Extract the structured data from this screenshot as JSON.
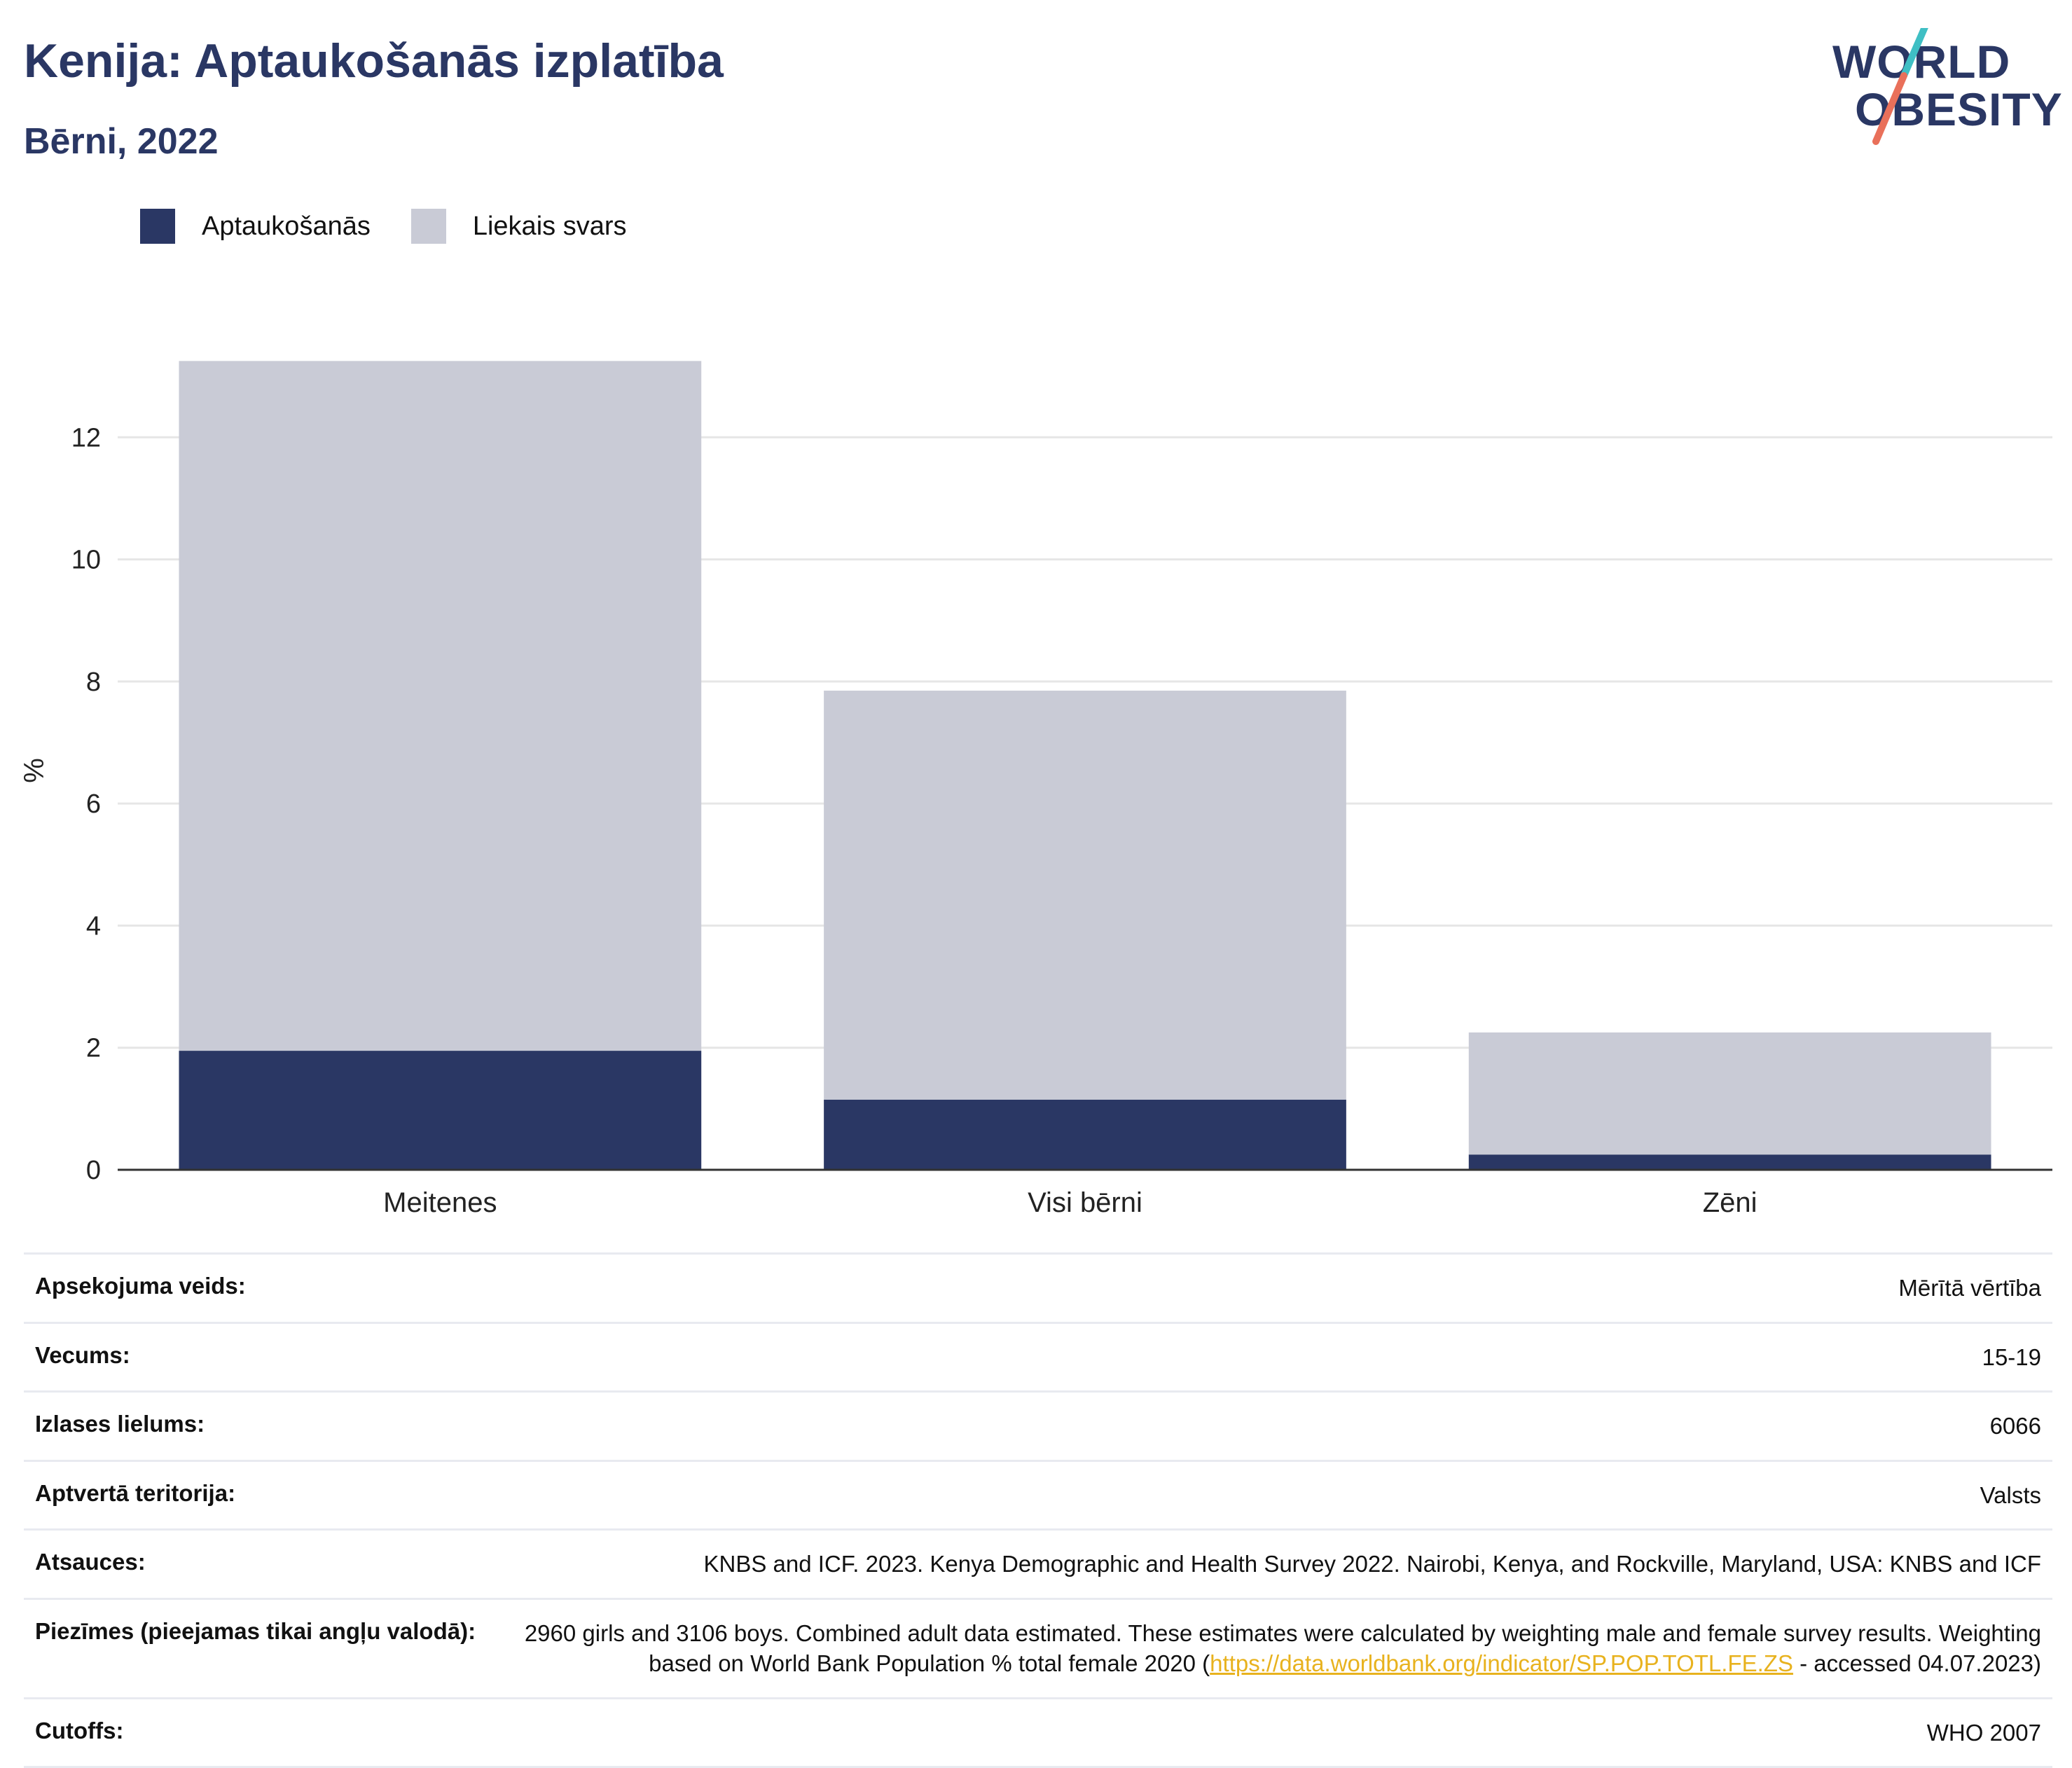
{
  "header": {
    "title": "Kenija: Aptaukošanās izplatība",
    "subtitle": "Bērni, 2022"
  },
  "logo": {
    "line1": "WORLD",
    "line2": "OBESITY",
    "colors": {
      "navy": "#2a3764",
      "teal": "#3fbfc4",
      "coral": "#e9705a"
    }
  },
  "colors": {
    "obesity": "#2a3764",
    "overweight": "#c9cbd6",
    "grid": "#e6e6e6",
    "axis": "#333333",
    "link": "#e8b21e"
  },
  "chart_data": {
    "type": "bar",
    "stacked": true,
    "categories": [
      "Meitenes",
      "Visi bērni",
      "Zēni"
    ],
    "series": [
      {
        "name": "Aptaukošanās",
        "values": [
          1.95,
          1.15,
          0.25
        ]
      },
      {
        "name": "Liekais svars",
        "values": [
          11.3,
          6.7,
          2.0
        ]
      }
    ],
    "totals": [
      13.25,
      7.85,
      2.25
    ],
    "ylabel": "%",
    "xlabel": "",
    "ylim": [
      0,
      14
    ],
    "yticks": [
      0,
      2,
      4,
      6,
      8,
      10,
      12
    ],
    "grid": true,
    "legend_position": "top-left"
  },
  "meta_rows": [
    {
      "label": "Apsekojuma veids:",
      "value": "Mērītā vērtība"
    },
    {
      "label": "Vecums:",
      "value": "15-19"
    },
    {
      "label": "Izlases lielums:",
      "value": "6066"
    },
    {
      "label": "Aptvertā teritorija:",
      "value": "Valsts"
    },
    {
      "label": "Atsauces:",
      "value": "KNBS and ICF. 2023. Kenya Demographic and Health Survey 2022. Nairobi, Kenya, and Rockville, Maryland, USA: KNBS and ICF"
    },
    {
      "label": "Piezīmes (pieejamas tikai angļu valodā):",
      "value_pre": "2960 girls and 3106 boys. Combined adult data estimated. These estimates were calculated by weighting male and female survey results. Weighting based on World Bank Population % total female 2020 (",
      "link": "https://data.worldbank.org/indicator/SP.POP.TOTL.FE.ZS",
      "value_post": " - accessed 04.07.2023)"
    },
    {
      "label": "Cutoffs:",
      "value": "WHO 2007"
    }
  ]
}
